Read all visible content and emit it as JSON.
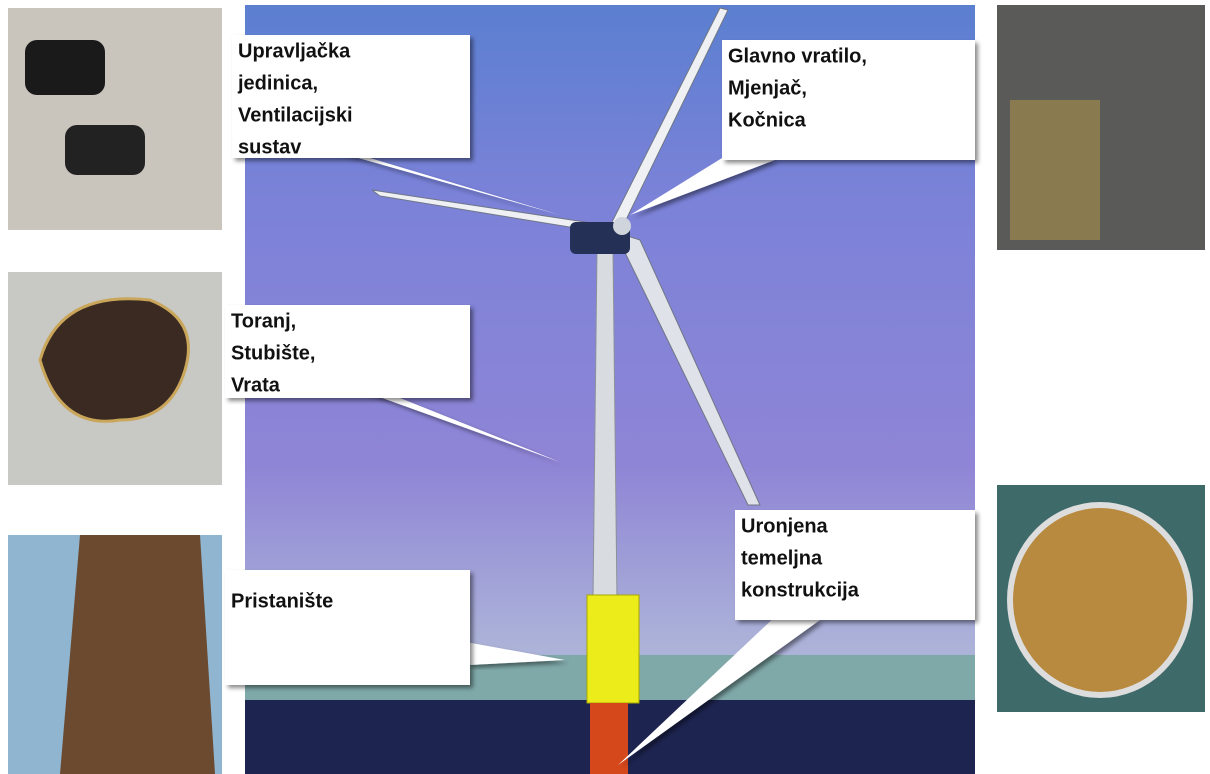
{
  "callouts": [
    {
      "lines": [
        "Upravljačka",
        "jedinica,",
        "Ventilacijski",
        "sustav"
      ]
    },
    {
      "lines": [
        "Glavno vratilo,",
        "Mjenjač,",
        "Kočnica"
      ]
    },
    {
      "lines": [
        "Toranj,",
        "Stubište,",
        "Vrata"
      ]
    },
    {
      "lines": [
        "Pristanište"
      ]
    },
    {
      "lines": [
        "Uronjena",
        "temeljna",
        "konstrukcija"
      ]
    }
  ]
}
